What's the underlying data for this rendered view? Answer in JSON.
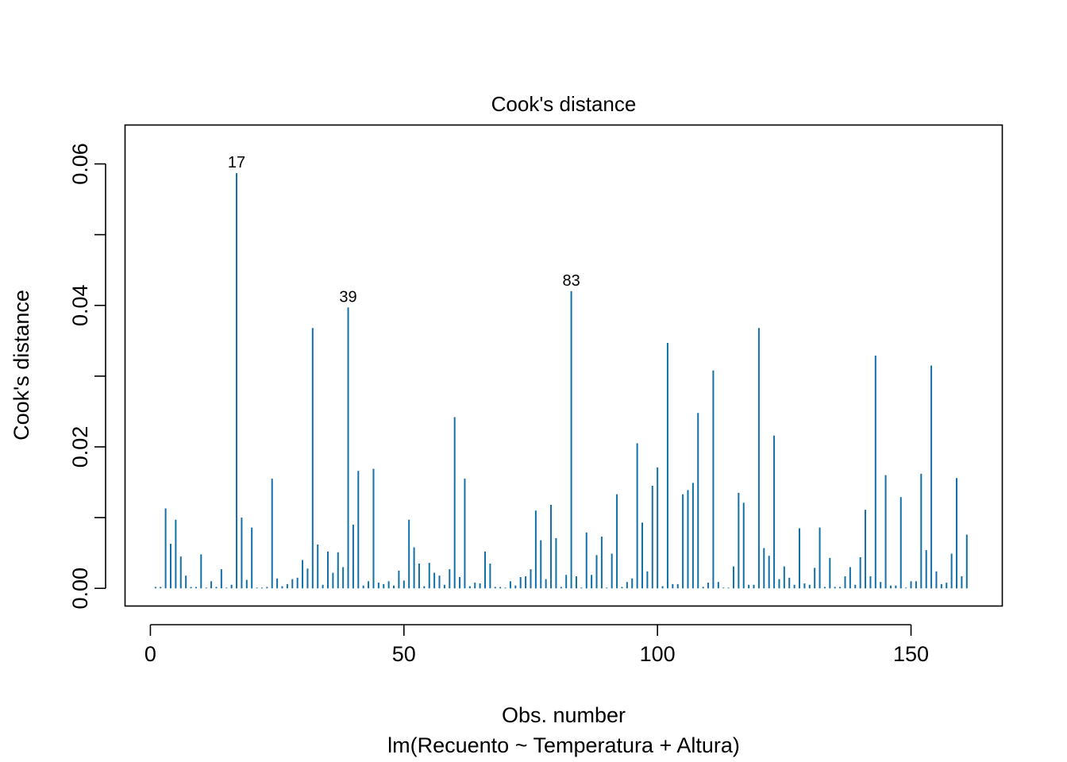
{
  "chart_data": {
    "type": "bar",
    "title": "Cook's distance",
    "xlabel": "Obs. number",
    "subtitle": "lm(Recuento ~ Temperatura + Altura)",
    "ylabel": "Cook's distance",
    "xlim": [
      -5,
      168
    ],
    "ylim": [
      -0.0025,
      0.0655
    ],
    "x_ticks": [
      0,
      50,
      100,
      150
    ],
    "x_tick_labels": [
      "0",
      "50",
      "100",
      "150"
    ],
    "y_ticks": [
      0.0,
      0.01,
      0.02,
      0.03,
      0.04,
      0.05,
      0.06
    ],
    "y_tick_labels": [
      "0.00",
      "",
      "0.02",
      "",
      "0.04",
      "",
      "0.06"
    ],
    "bar_color": "#1170A8",
    "x": [
      1,
      2,
      3,
      4,
      5,
      6,
      7,
      8,
      9,
      10,
      11,
      12,
      13,
      14,
      15,
      16,
      17,
      18,
      19,
      20,
      21,
      22,
      23,
      24,
      25,
      26,
      27,
      28,
      29,
      30,
      31,
      32,
      33,
      34,
      35,
      36,
      37,
      38,
      39,
      40,
      41,
      42,
      43,
      44,
      45,
      46,
      47,
      48,
      49,
      50,
      51,
      52,
      53,
      54,
      55,
      56,
      57,
      58,
      59,
      60,
      61,
      62,
      63,
      64,
      65,
      66,
      67,
      68,
      69,
      70,
      71,
      72,
      73,
      74,
      75,
      76,
      77,
      78,
      79,
      80,
      81,
      82,
      83,
      84,
      85,
      86,
      87,
      88,
      89,
      90,
      91,
      92,
      93,
      94,
      95,
      96,
      97,
      98,
      99,
      100,
      101,
      102,
      103,
      104,
      105,
      106,
      107,
      108,
      109,
      110,
      111,
      112,
      113,
      114,
      115,
      116,
      117,
      118,
      119,
      120,
      121,
      122,
      123,
      124,
      125,
      126,
      127,
      128,
      129,
      130,
      131,
      132,
      133,
      134,
      135,
      136,
      137,
      138,
      139,
      140,
      141,
      142,
      143,
      144,
      145,
      146,
      147,
      148,
      149,
      150,
      151,
      152,
      153,
      154,
      155,
      156,
      157,
      158,
      159,
      160,
      161
    ],
    "values": [
      0.0002,
      0.0002,
      0.0113,
      0.0063,
      0.0097,
      0.0045,
      0.0018,
      0.0002,
      0.0002,
      0.0048,
      0.0001,
      0.001,
      0.0002,
      0.0027,
      0.0001,
      0.0005,
      0.0587,
      0.01,
      0.0012,
      0.0086,
      0.0001,
      0.0001,
      0.0002,
      0.0155,
      0.0014,
      0.0003,
      0.0006,
      0.0013,
      0.0015,
      0.004,
      0.0028,
      0.0368,
      0.0062,
      0.0005,
      0.0052,
      0.0022,
      0.0051,
      0.003,
      0.0397,
      0.009,
      0.0166,
      0.0004,
      0.001,
      0.0169,
      0.0008,
      0.0006,
      0.001,
      0.0004,
      0.0025,
      0.0011,
      0.0097,
      0.0058,
      0.0035,
      0.0003,
      0.0036,
      0.0022,
      0.0018,
      0.0005,
      0.0027,
      0.0242,
      0.0016,
      0.0155,
      0.0003,
      0.0008,
      0.0007,
      0.0052,
      0.0035,
      0.0002,
      0.0002,
      0.0001,
      0.001,
      0.0004,
      0.0016,
      0.0017,
      0.0027,
      0.011,
      0.0068,
      0.0013,
      0.0118,
      0.0071,
      0.0002,
      0.0019,
      0.042,
      0.0017,
      0.0001,
      0.0079,
      0.0019,
      0.0047,
      0.0073,
      0.0001,
      0.0049,
      0.0133,
      0.0002,
      0.0009,
      0.0014,
      0.0205,
      0.0093,
      0.0024,
      0.0145,
      0.0171,
      0.0003,
      0.0347,
      0.0006,
      0.0006,
      0.0133,
      0.0139,
      0.0149,
      0.0248,
      0.0002,
      0.0008,
      0.0308,
      0.0009,
      0.0001,
      0.0001,
      0.0031,
      0.0135,
      0.0121,
      0.0005,
      0.0005,
      0.0368,
      0.0057,
      0.0046,
      0.0216,
      0.0013,
      0.0031,
      0.0015,
      0.0005,
      0.0085,
      0.0007,
      0.0005,
      0.0029,
      0.0086,
      0.0002,
      0.0043,
      0.0002,
      0.0002,
      0.0017,
      0.003,
      0.0005,
      0.0044,
      0.0111,
      0.0017,
      0.0329,
      0.0009,
      0.016,
      0.0004,
      0.0004,
      0.0129,
      0.0001,
      0.001,
      0.001,
      0.0162,
      0.0054,
      0.0315,
      0.0024,
      0.0006,
      0.0008,
      0.0049,
      0.0156,
      0.0017,
      0.0076
    ],
    "labeled_points": [
      {
        "x": 17,
        "label": "17"
      },
      {
        "x": 39,
        "label": "39"
      },
      {
        "x": 83,
        "label": "83"
      }
    ]
  }
}
